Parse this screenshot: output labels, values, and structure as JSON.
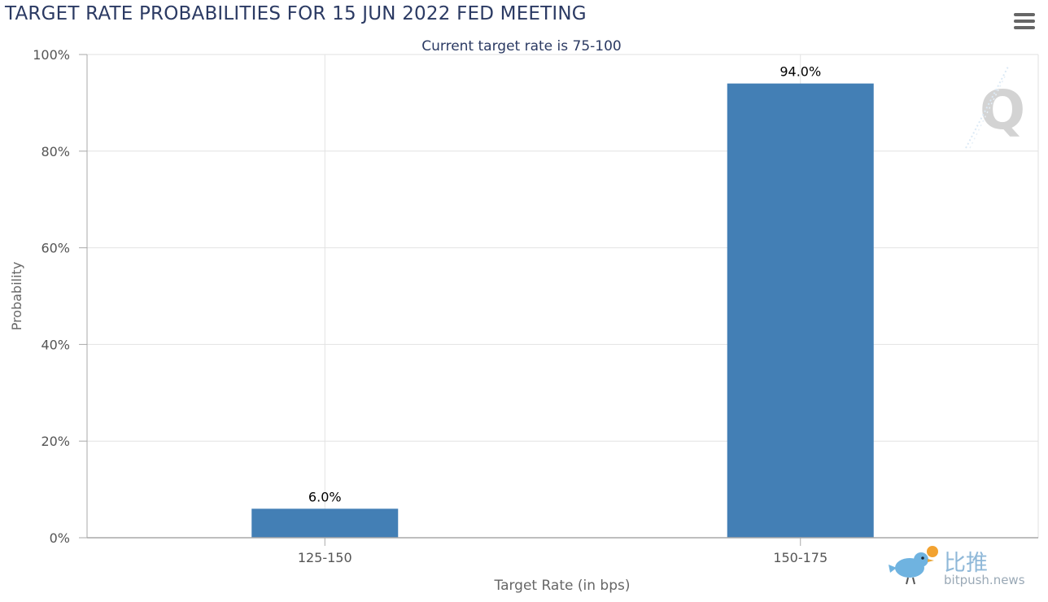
{
  "header": {
    "title": "TARGET RATE PROBABILITIES FOR 15 JUN 2022 FED MEETING",
    "menu_icon": "hamburger-menu-icon"
  },
  "colors": {
    "bar": "#437fb5",
    "title": "#2b3a63",
    "grid": "#e2e2e2",
    "axis": "#a9a9a9"
  },
  "chart_data": {
    "type": "bar",
    "title": "TARGET RATE PROBABILITIES FOR 15 JUN 2022 FED MEETING",
    "subtitle": "Current target rate is 75-100",
    "categories": [
      "125-150",
      "150-175"
    ],
    "values": [
      6.0,
      94.0
    ],
    "data_labels": [
      "6.0%",
      "94.0%"
    ],
    "xlabel": "Target Rate (in bps)",
    "ylabel": "Probability",
    "ylim": [
      0,
      100
    ],
    "yticks": [
      0,
      20,
      40,
      60,
      80,
      100
    ],
    "ytick_labels": [
      "0%",
      "20%",
      "40%",
      "60%",
      "80%",
      "100%"
    ],
    "grid": true,
    "legend": "none"
  },
  "watermarks": {
    "q_logo": "Q",
    "bitpush_cn": "比推",
    "bitpush_en": "bitpush.news"
  }
}
